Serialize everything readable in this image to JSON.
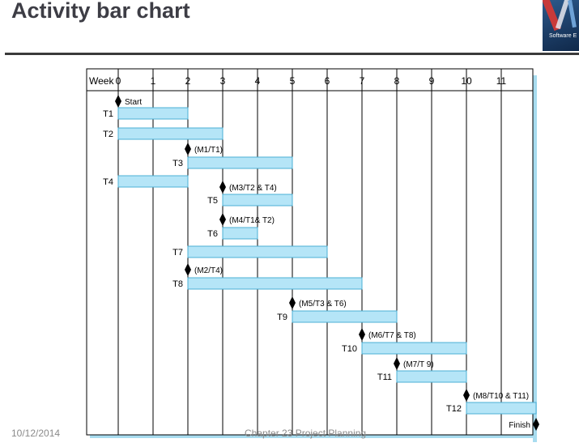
{
  "slide": {
    "title": "Activity bar chart",
    "footer_date": "10/12/2014",
    "footer_chapter": "Chapter 23 Project Planning",
    "logo_text": "Software E"
  },
  "colors": {
    "bar_fill": "#b5e5f7",
    "bar_stroke": "#4bb0d6",
    "shadow": "#a8dcef",
    "grid": "#000000"
  },
  "chart_data": {
    "type": "bar",
    "subtype": "gantt",
    "xlabel": "Week",
    "xlim": [
      0,
      12
    ],
    "x_ticks": [
      0,
      1,
      2,
      3,
      4,
      5,
      6,
      7,
      8,
      9,
      10,
      11
    ],
    "grid": true,
    "rows": [
      {
        "kind": "milestone",
        "name": "Start",
        "at": 0,
        "label_side": "right"
      },
      {
        "kind": "task",
        "name": "T1",
        "start": 0,
        "end": 2
      },
      {
        "kind": "task",
        "name": "T2",
        "start": 0,
        "end": 3
      },
      {
        "kind": "milestone",
        "name": "(M1/T1)",
        "at": 2,
        "label_side": "right"
      },
      {
        "kind": "task",
        "name": "T3",
        "start": 2,
        "end": 5
      },
      {
        "kind": "task",
        "name": "T4",
        "start": 0,
        "end": 2
      },
      {
        "kind": "milestone",
        "name": "(M3/T2 & T4)",
        "at": 3,
        "label_side": "right"
      },
      {
        "kind": "task",
        "name": "T5",
        "start": 3,
        "end": 5
      },
      {
        "kind": "milestone",
        "name": "(M4/T1& T2)",
        "at": 3,
        "label_side": "right"
      },
      {
        "kind": "task",
        "name": "T6",
        "start": 3,
        "end": 4
      },
      {
        "kind": "task",
        "name": "T7",
        "start": 2,
        "end": 6
      },
      {
        "kind": "milestone",
        "name": "(M2/T4)",
        "at": 2,
        "label_side": "right"
      },
      {
        "kind": "task",
        "name": "T8",
        "start": 2,
        "end": 7
      },
      {
        "kind": "milestone",
        "name": "(M5/T3 & T6)",
        "at": 5,
        "label_side": "right"
      },
      {
        "kind": "task",
        "name": "T9",
        "start": 5,
        "end": 8
      },
      {
        "kind": "milestone",
        "name": "(M6/T7 & T8)",
        "at": 7,
        "label_side": "right"
      },
      {
        "kind": "task",
        "name": "T10",
        "start": 7,
        "end": 10
      },
      {
        "kind": "milestone",
        "name": "(M7/T 9)",
        "at": 8,
        "label_side": "right"
      },
      {
        "kind": "task",
        "name": "T11",
        "start": 8,
        "end": 10
      },
      {
        "kind": "milestone",
        "name": "(M8/T10 & T11)",
        "at": 10,
        "label_side": "right"
      },
      {
        "kind": "task",
        "name": "T12",
        "start": 10,
        "end": 12
      },
      {
        "kind": "milestone",
        "name": "Finish",
        "at": 12,
        "label_side": "left"
      }
    ]
  }
}
